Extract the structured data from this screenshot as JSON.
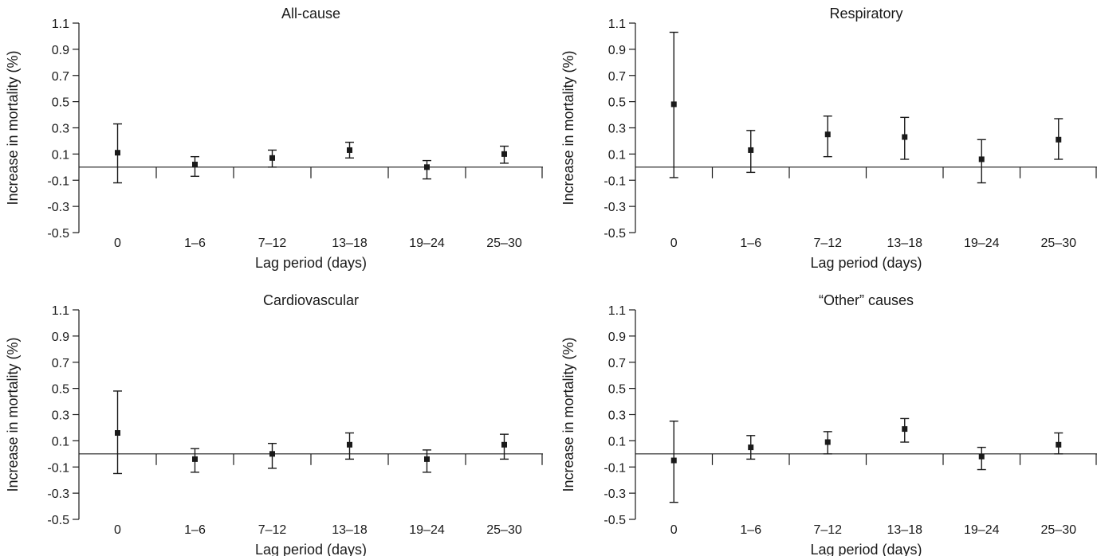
{
  "figure": {
    "xlabel": "Lag period (days)",
    "ylabel": "Increase in mortality (%)"
  },
  "chart_data": [
    {
      "type": "scatter",
      "title": "All-cause",
      "xlabel": "Lag period (days)",
      "ylabel": "Increase in mortality (%)",
      "categories": [
        "0",
        "1–6",
        "7–12",
        "13–18",
        "19–24",
        "25–30"
      ],
      "yticks": [
        "1.1",
        "0.9",
        "0.7",
        "0.5",
        "0.3",
        "0.1",
        "-0.1",
        "-0.3",
        "-0.5"
      ],
      "ylim": [
        -0.5,
        1.1
      ],
      "reference_line": 0,
      "values": [
        0.11,
        0.02,
        0.07,
        0.13,
        0.0,
        0.1
      ],
      "lower": [
        -0.12,
        -0.07,
        0.0,
        0.07,
        -0.09,
        0.03
      ],
      "upper": [
        0.33,
        0.08,
        0.13,
        0.19,
        0.05,
        0.16
      ]
    },
    {
      "type": "scatter",
      "title": "Respiratory",
      "xlabel": "Lag period (days)",
      "ylabel": "Increase in mortality (%)",
      "categories": [
        "0",
        "1–6",
        "7–12",
        "13–18",
        "19–24",
        "25–30"
      ],
      "yticks": [
        "1.1",
        "0.9",
        "0.7",
        "0.5",
        "0.3",
        "0.1",
        "-0.1",
        "-0.3",
        "-0.5"
      ],
      "ylim": [
        -0.5,
        1.1
      ],
      "reference_line": 0,
      "values": [
        0.48,
        0.13,
        0.25,
        0.23,
        0.06,
        0.21
      ],
      "lower": [
        -0.08,
        -0.04,
        0.08,
        0.06,
        -0.12,
        0.06
      ],
      "upper": [
        1.03,
        0.28,
        0.39,
        0.38,
        0.21,
        0.37
      ]
    },
    {
      "type": "scatter",
      "title": "Cardiovascular",
      "xlabel": "Lag period (days)",
      "ylabel": "Increase in mortality (%)",
      "categories": [
        "0",
        "1–6",
        "7–12",
        "13–18",
        "19–24",
        "25–30"
      ],
      "yticks": [
        "1.1",
        "0.9",
        "0.7",
        "0.5",
        "0.3",
        "0.1",
        "-0.1",
        "-0.3",
        "-0.5"
      ],
      "ylim": [
        -0.5,
        1.1
      ],
      "reference_line": 0,
      "values": [
        0.16,
        -0.04,
        0.0,
        0.07,
        -0.04,
        0.07
      ],
      "lower": [
        -0.15,
        -0.14,
        -0.11,
        -0.04,
        -0.14,
        -0.04
      ],
      "upper": [
        0.48,
        0.04,
        0.08,
        0.16,
        0.03,
        0.15
      ]
    },
    {
      "type": "scatter",
      "title": "“Other” causes",
      "xlabel": "Lag period (days)",
      "ylabel": "Increase in mortality (%)",
      "categories": [
        "0",
        "1–6",
        "7–12",
        "13–18",
        "19–24",
        "25–30"
      ],
      "yticks": [
        "1.1",
        "0.9",
        "0.7",
        "0.5",
        "0.3",
        "0.1",
        "-0.1",
        "-0.3",
        "-0.5"
      ],
      "ylim": [
        -0.5,
        1.1
      ],
      "reference_line": 0,
      "values": [
        -0.05,
        0.05,
        0.09,
        0.19,
        -0.02,
        0.07
      ],
      "lower": [
        -0.37,
        -0.04,
        0.0,
        0.09,
        -0.12,
        0.0
      ],
      "upper": [
        0.25,
        0.14,
        0.17,
        0.27,
        0.05,
        0.16
      ]
    }
  ]
}
